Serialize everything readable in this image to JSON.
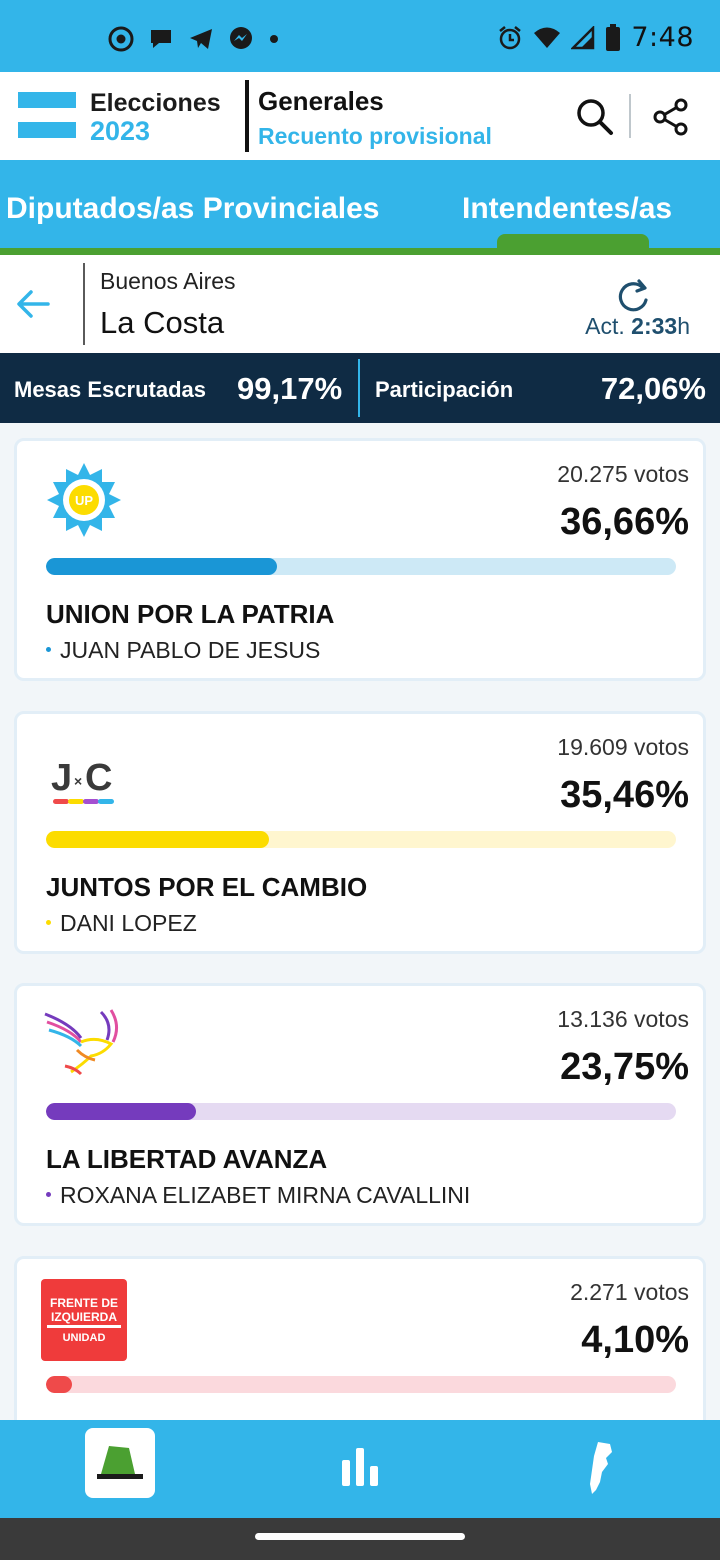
{
  "status_bar": {
    "time": "7:48",
    "left_icons": [
      "chrome-icon",
      "chat-icon",
      "telegram-icon",
      "messenger-icon",
      "dot-icon"
    ],
    "right_icons": [
      "alarm-icon",
      "wifi-icon",
      "signal-icon",
      "battery-icon"
    ]
  },
  "header": {
    "brand_line1": "Elecciones",
    "brand_line2": "2023",
    "title": "Generales",
    "subtitle": "Recuento provisional"
  },
  "tabs": [
    {
      "label": "Diputados/as Provinciales",
      "active": false
    },
    {
      "label": "Intendentes/as",
      "active": true
    }
  ],
  "location": {
    "province": "Buenos Aires",
    "city": "La Costa",
    "updated_prefix": "Act.",
    "updated_time": "2:33",
    "updated_suffix": "h"
  },
  "stats": {
    "mesas_label": "Mesas Escrutadas",
    "mesas_value": "99,17%",
    "participacion_label": "Participación",
    "participacion_value": "72,06%"
  },
  "results": [
    {
      "party": "UNION POR LA PATRIA",
      "candidate": "JUAN PABLO DE JESUS",
      "votes": "20.275 votos",
      "percent": "36,66%",
      "share": 36.66,
      "color": "#1a96d6",
      "track_color": "#cde9f6",
      "logo": "union-por-la-patria-logo"
    },
    {
      "party": "JUNTOS POR EL CAMBIO",
      "candidate": "DANI LOPEZ",
      "votes": "19.609 votos",
      "percent": "35,46%",
      "share": 35.46,
      "color": "#fcdc00",
      "track_color": "#fff6cf",
      "logo": "juntos-por-el-cambio-logo"
    },
    {
      "party": "LA LIBERTAD AVANZA",
      "candidate": "ROXANA ELIZABET MIRNA CAVALLINI",
      "votes": "13.136 votos",
      "percent": "23,75%",
      "share": 23.75,
      "color": "#753bbd",
      "track_color": "#e5daf2",
      "logo": "la-libertad-avanza-logo"
    },
    {
      "party": "",
      "candidate": "",
      "votes": "2.271 votos",
      "percent": "4,10%",
      "share": 4.1,
      "color": "#ef4a4a",
      "track_color": "#fbd9dd",
      "logo": "frente-de-izquierda-logo",
      "logo_text": [
        "FRENTE DE",
        "IZQUIERDA",
        "UNIDAD"
      ]
    }
  ],
  "bottom_nav": [
    {
      "icon": "ballot-icon",
      "active": true
    },
    {
      "icon": "bar-chart-icon",
      "active": false
    },
    {
      "icon": "argentina-map-icon",
      "active": false
    }
  ]
}
